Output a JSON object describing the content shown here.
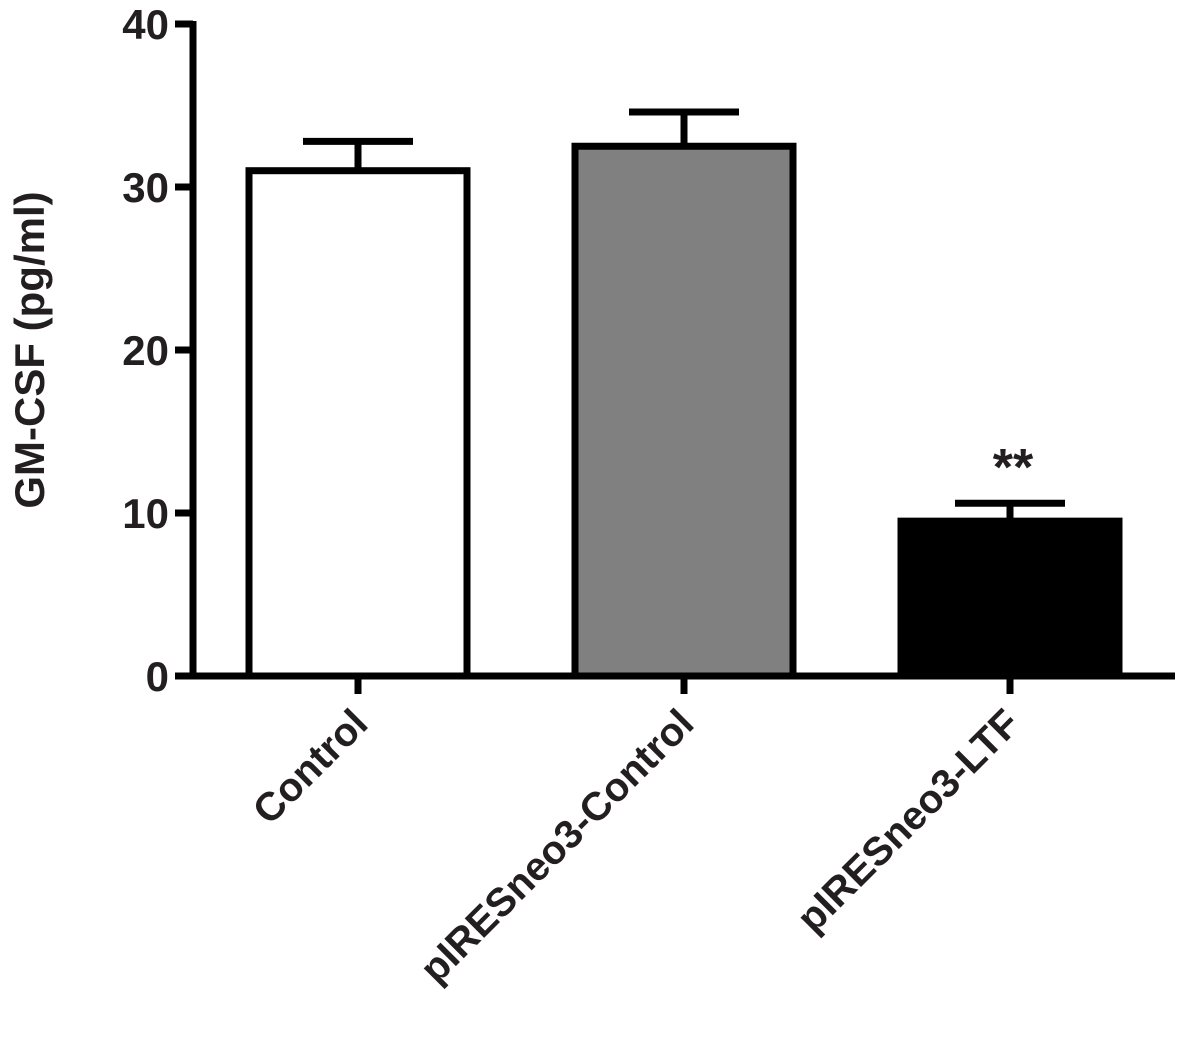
{
  "chart_data": {
    "type": "bar",
    "title": "",
    "xlabel": "",
    "ylabel": "GM-CSF (pg/ml)",
    "ylim": [
      0,
      40
    ],
    "yticks": [
      "0",
      "10",
      "20",
      "30",
      "40"
    ],
    "categories": [
      "Control",
      "pIRESneo3-Control",
      "pIRESneo3-LTF"
    ],
    "values": [
      31.0,
      32.5,
      9.5
    ],
    "errors": [
      1.8,
      2.1,
      1.1
    ],
    "annotations": [
      "",
      "",
      "**"
    ],
    "bar_colors": [
      "#ffffff",
      "#808080",
      "#000000"
    ],
    "stroke_color": "#000000",
    "grid": false,
    "legend": "none"
  }
}
